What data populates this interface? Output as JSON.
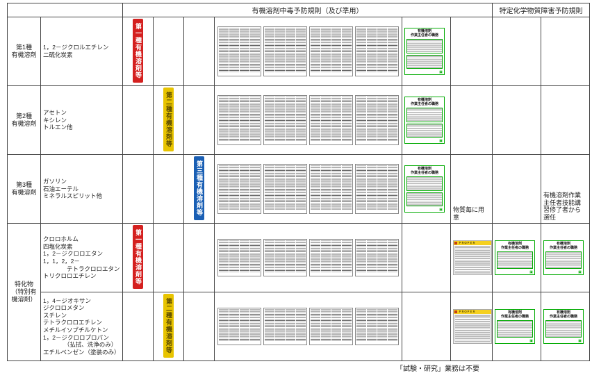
{
  "header": {
    "col_main": "有機溶剤中毒予防規則（及び準用）",
    "col_right": "特定化学物質障害予防規則"
  },
  "rows": {
    "r1": {
      "head": "第1種\n有機溶剤",
      "chems": "1，2－ジクロルエチレン\n二硫化炭素"
    },
    "r2": {
      "head": "第2種\n有機溶剤",
      "chems": "アセトン\nキシレン\nトルエン他"
    },
    "r3": {
      "head": "第3種\n有機溶剤",
      "chems": "ガソリン\n石油エーテル\nミネラルスピリット他"
    },
    "rS": {
      "head": "特化物\n（特別有\n機溶剤）"
    },
    "r4": {
      "chems": "クロロホルム\n四塩化炭素\n1，2－ジクロロエタン\n1，1，2，2－\n　　　　テトラクロロエタン\nトリクロロエチレン"
    },
    "r5": {
      "chems": "1，4－ジオキサン\nジクロロメタン\nスチレン\nテトラクロロエチレン\nメチルイソブチルケトン\n1，2－ジクロロプロパン\n　　　　（払拭、洗浄のみ）\nエチルベンゼン（塗装のみ）"
    }
  },
  "badges": {
    "type1": {
      "text": "第一種有機溶剤等",
      "bg": "#d4201f"
    },
    "type2": {
      "text": "第二種有機溶剤等",
      "bg": "#e8c400"
    },
    "type3": {
      "text": "第三種有機溶剤等",
      "bg": "#1a5fb4"
    }
  },
  "green_card": {
    "title_l1": "有機溶剤",
    "title_l2": "作業主任者の職務"
  },
  "yellow_card": {
    "bar_bg": "#f5d020",
    "sq_color": "#c63f13",
    "label": "ＰＲＯＰＥＲ"
  },
  "notes": {
    "per_substance": "物質毎に用意",
    "supervisor": "有機溶剤作業\n主任者技能講\n習修了者から\n選任"
  },
  "footnote": "「試験・研究」業務は不要",
  "colors": {
    "green": "#0a8a0a",
    "border": "#444444"
  }
}
